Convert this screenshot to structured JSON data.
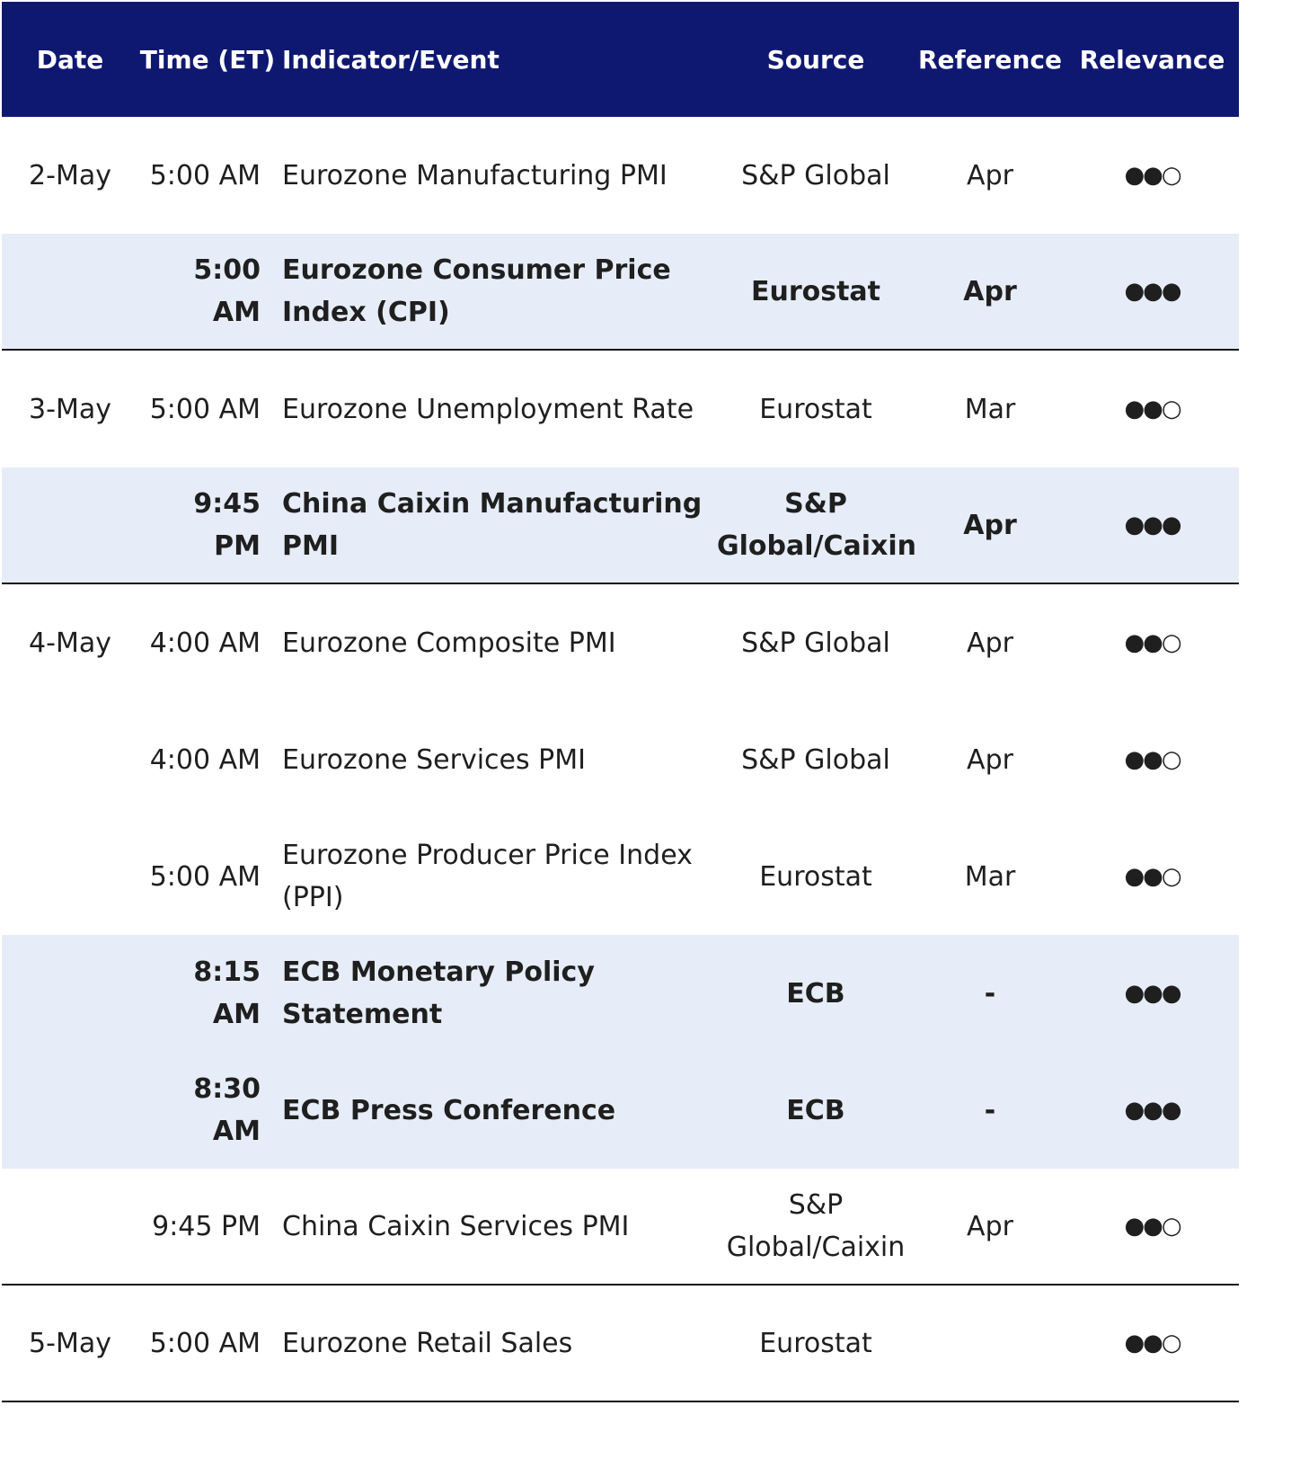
{
  "columns": {
    "date": "Date",
    "time": "Time (ET)",
    "indicator": "Indicator/Event",
    "source": "Source",
    "reference": "Reference",
    "relevance": "Relevance"
  },
  "rows": [
    {
      "date": "2-May",
      "time": "5:00 AM",
      "indicator": "Eurozone Manufacturing PMI",
      "source": "S&P Global",
      "reference": "Apr",
      "relevance": "●●○"
    },
    {
      "date": "",
      "time": "5:00 AM",
      "indicator": "Eurozone Consumer Price Index (CPI)",
      "source": "Eurostat",
      "reference": "Apr",
      "relevance": "●●●"
    },
    {
      "date": "3-May",
      "time": "5:00 AM",
      "indicator": "Eurozone Unemployment Rate",
      "source": "Eurostat",
      "reference": "Mar",
      "relevance": "●●○"
    },
    {
      "date": "",
      "time": "9:45 PM",
      "indicator": "China Caixin Manufacturing PMI",
      "source": "S&P Global/Caixin",
      "reference": "Apr",
      "relevance": "●●●"
    },
    {
      "date": "4-May",
      "time": "4:00 AM",
      "indicator": "Eurozone Composite PMI",
      "source": "S&P Global",
      "reference": "Apr",
      "relevance": "●●○"
    },
    {
      "date": "",
      "time": "4:00 AM",
      "indicator": "Eurozone Services PMI",
      "source": "S&P Global",
      "reference": "Apr",
      "relevance": "●●○"
    },
    {
      "date": "",
      "time": "5:00 AM",
      "indicator": "Eurozone Producer Price Index (PPI)",
      "source": "Eurostat",
      "reference": "Mar",
      "relevance": "●●○"
    },
    {
      "date": "",
      "time": "8:15 AM",
      "indicator": "ECB Monetary Policy Statement",
      "source": "ECB",
      "reference": "-",
      "relevance": "●●●"
    },
    {
      "date": "",
      "time": "8:30 AM",
      "indicator": "ECB Press Conference",
      "source": "ECB",
      "reference": "-",
      "relevance": "●●●"
    },
    {
      "date": "",
      "time": "9:45 PM",
      "indicator": "China Caixin Services PMI",
      "source": "S&P Global/Caixin",
      "reference": "Apr",
      "relevance": "●●○"
    },
    {
      "date": "5-May",
      "time": "5:00 AM",
      "indicator": "Eurozone Retail Sales",
      "source": "Eurostat",
      "reference": "",
      "relevance": "●●○"
    }
  ],
  "colors": {
    "header_bg": "#0f1871",
    "highlight_bg": "#e6edf8"
  }
}
